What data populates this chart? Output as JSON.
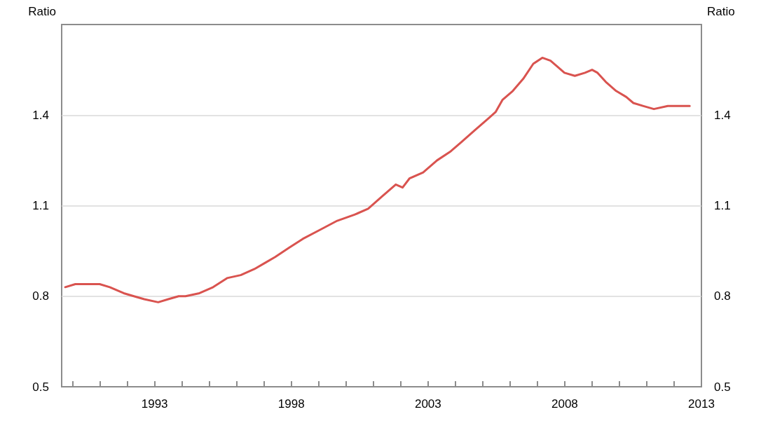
{
  "chart_data": {
    "type": "line",
    "ylabel": "Ratio",
    "y2label": "Ratio",
    "xlim": [
      1989.6,
      2013
    ],
    "xticks": [
      {
        "value": 1990,
        "label": null
      },
      {
        "value": 1991,
        "label": null
      },
      {
        "value": 1992,
        "label": null
      },
      1993,
      {
        "value": 1994,
        "label": null
      },
      {
        "value": 1995,
        "label": null
      },
      {
        "value": 1996,
        "label": null
      },
      {
        "value": 1997,
        "label": null
      },
      1998,
      {
        "value": 1999,
        "label": null
      },
      {
        "value": 2000,
        "label": null
      },
      {
        "value": 2001,
        "label": null
      },
      {
        "value": 2002,
        "label": null
      },
      2003,
      {
        "value": 2004,
        "label": null
      },
      {
        "value": 2005,
        "label": null
      },
      {
        "value": 2006,
        "label": null
      },
      {
        "value": 2007,
        "label": null
      },
      2008,
      {
        "value": 2009,
        "label": null
      },
      {
        "value": 2010,
        "label": null
      },
      {
        "value": 2011,
        "label": null
      },
      {
        "value": 2012,
        "label": null
      },
      2013
    ],
    "ylim": [
      0.5,
      1.7
    ],
    "yticks": [
      0.5,
      0.8,
      1.1,
      1.4
    ],
    "y2lim": [
      0.5,
      1.7
    ],
    "y2ticks": [
      0.5,
      0.8,
      1.1,
      1.4
    ],
    "grid": "y",
    "marker": "none",
    "line_style": "solid",
    "series": [
      {
        "color": "#d9534f",
        "x": [
          1989.73,
          1990.1,
          1990.61,
          1990.99,
          1991.36,
          1991.87,
          1992.24,
          1992.62,
          1993.13,
          1993.5,
          1993.88,
          1994.13,
          1994.64,
          1995.14,
          1995.65,
          1996.15,
          1996.65,
          1997.03,
          1997.41,
          1997.91,
          1998.42,
          1999.05,
          1999.68,
          2000.31,
          2000.81,
          2001.31,
          2001.82,
          2002.07,
          2002.32,
          2002.82,
          2003.33,
          2003.83,
          2004.21,
          2004.71,
          2005.22,
          2005.47,
          2005.72,
          2006.1,
          2006.48,
          2006.85,
          2007.18,
          2007.48,
          2007.74,
          2007.99,
          2008.37,
          2008.74,
          2009.0,
          2009.2,
          2009.5,
          2009.88,
          2010.25,
          2010.51,
          2010.88,
          2011.26,
          2011.77,
          2012.14,
          2012.57
        ],
        "values": [
          0.83,
          0.84,
          0.84,
          0.84,
          0.83,
          0.81,
          0.8,
          0.79,
          0.78,
          0.79,
          0.8,
          0.8,
          0.81,
          0.83,
          0.86,
          0.87,
          0.89,
          0.91,
          0.93,
          0.96,
          0.99,
          1.02,
          1.05,
          1.07,
          1.09,
          1.13,
          1.17,
          1.16,
          1.19,
          1.21,
          1.25,
          1.28,
          1.31,
          1.35,
          1.39,
          1.41,
          1.45,
          1.48,
          1.52,
          1.57,
          1.59,
          1.58,
          1.56,
          1.54,
          1.53,
          1.54,
          1.55,
          1.54,
          1.51,
          1.48,
          1.46,
          1.44,
          1.43,
          1.42,
          1.43,
          1.43,
          1.43
        ]
      }
    ]
  }
}
